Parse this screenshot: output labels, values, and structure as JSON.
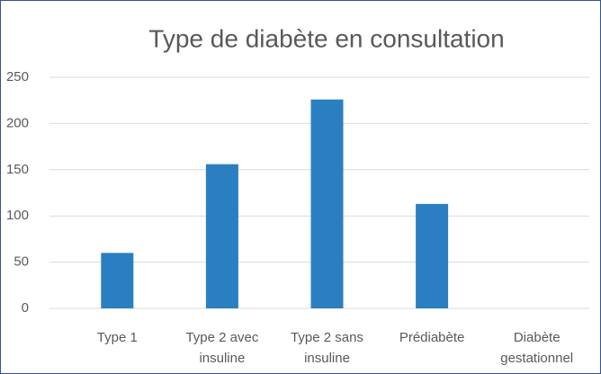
{
  "chart_data": {
    "type": "bar",
    "title": "Type de diabète en consultation",
    "categories": [
      "Type 1",
      "Type 2 avec insuline",
      "Type 2 sans insuline",
      "Prédiabète",
      "Diabète gestationnel"
    ],
    "values": [
      60,
      156,
      226,
      113,
      0
    ],
    "color": "#2a7fc1",
    "ylim": [
      0,
      250
    ],
    "yticks": [
      0,
      50,
      100,
      150,
      200,
      250
    ],
    "grid": true
  }
}
